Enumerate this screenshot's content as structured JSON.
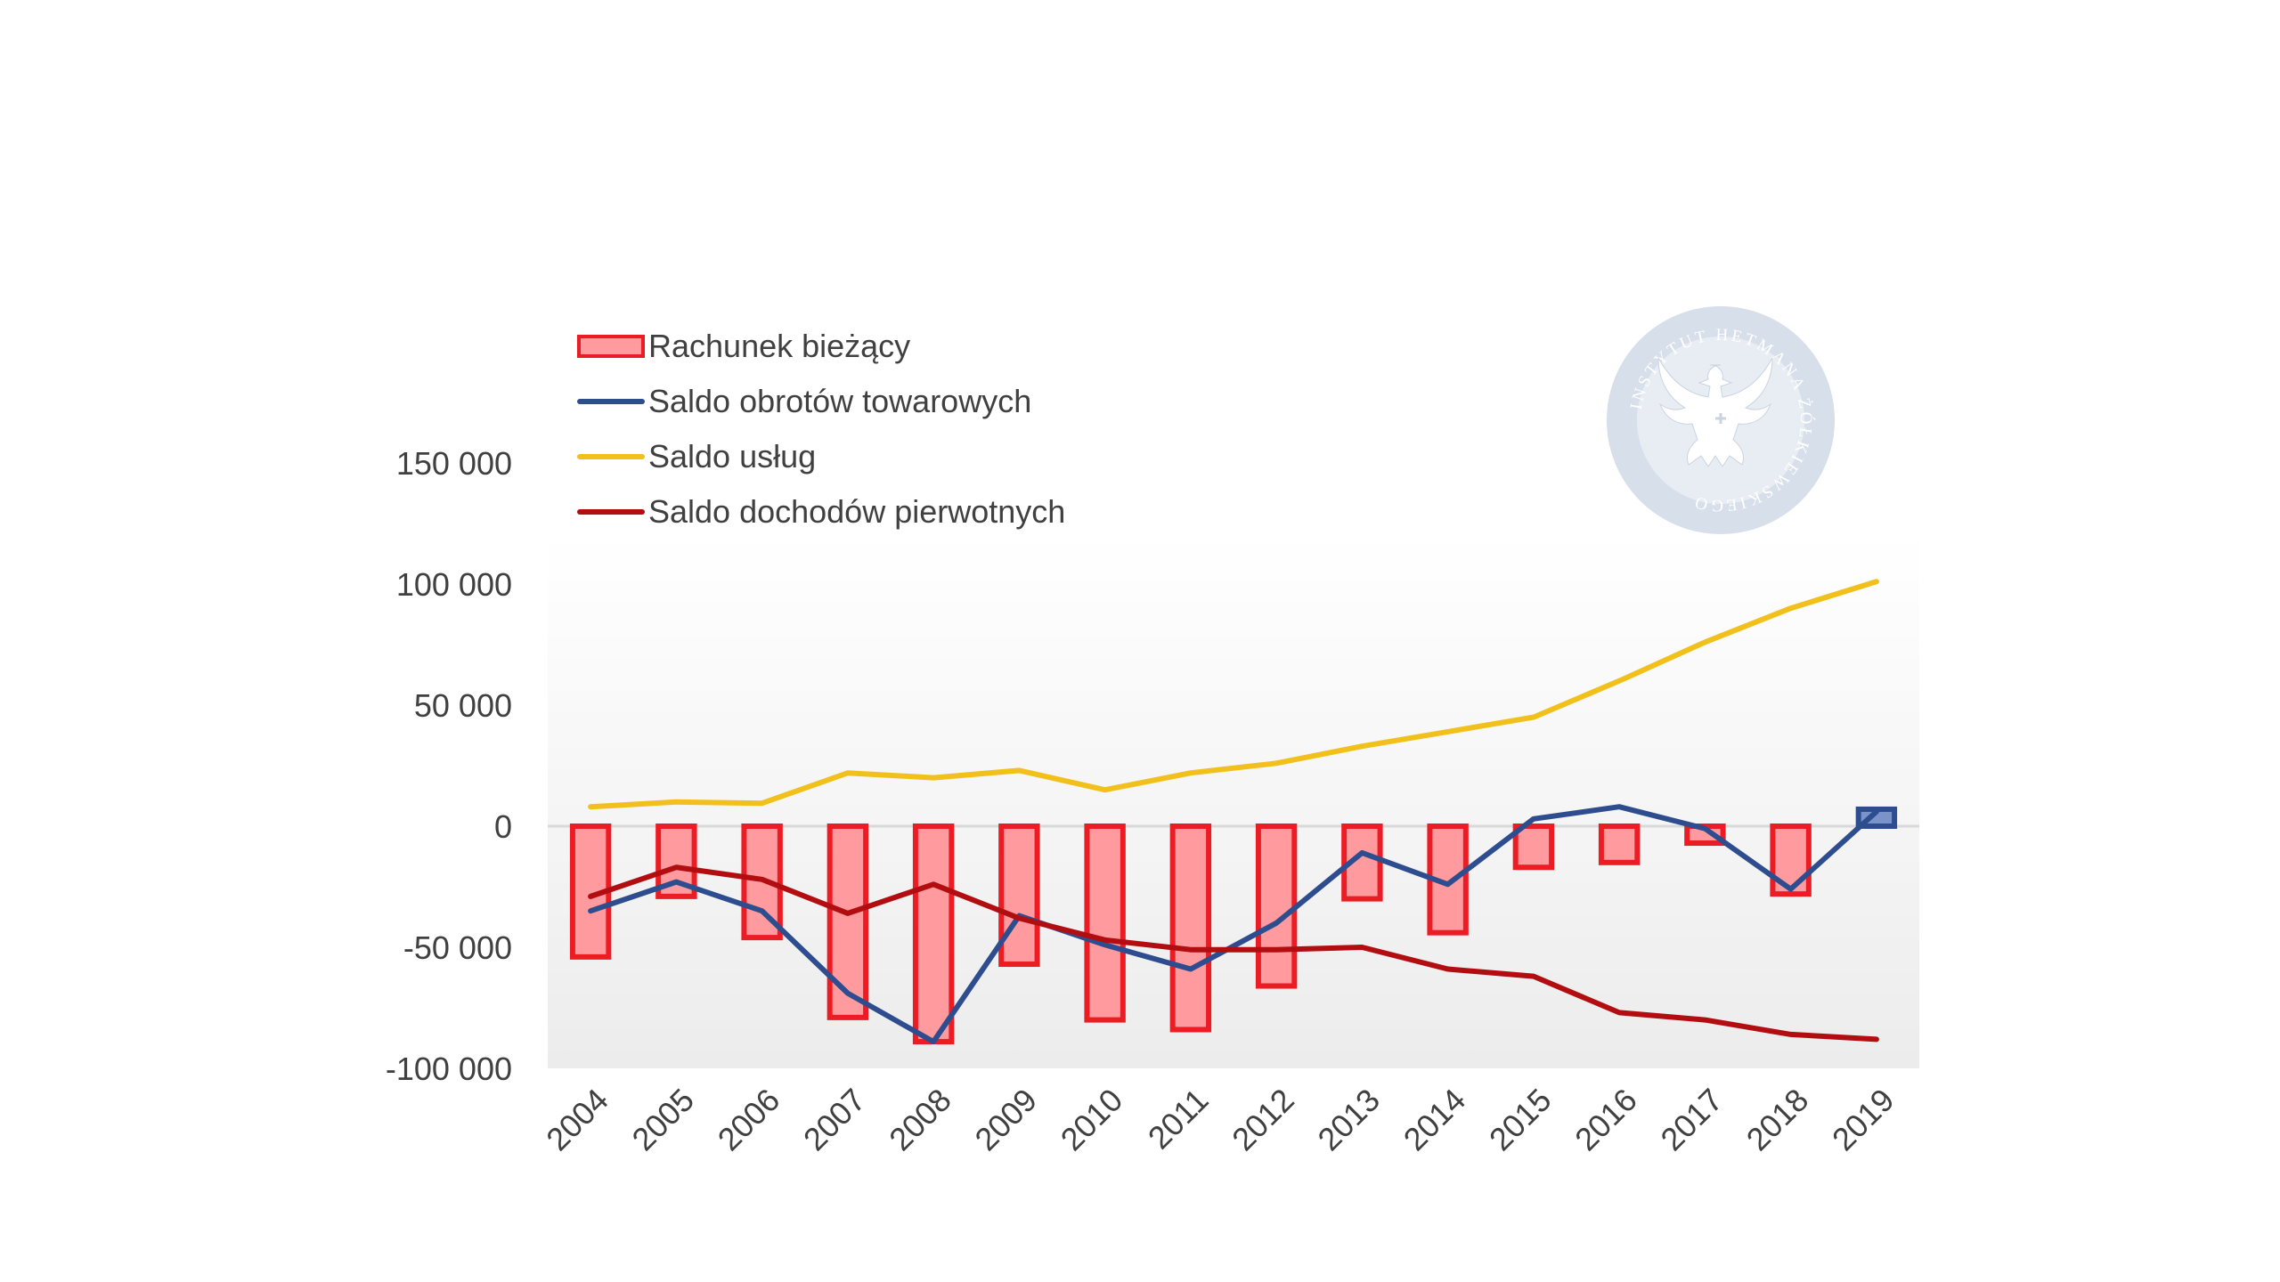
{
  "chart_data": {
    "type": "bar",
    "categories": [
      "2004",
      "2005",
      "2006",
      "2007",
      "2008",
      "2009",
      "2010",
      "2011",
      "2012",
      "2013",
      "2014",
      "2015",
      "2016",
      "2017",
      "2018",
      "2019"
    ],
    "ylim": [
      -100000,
      150000
    ],
    "yticks": [
      150000,
      100000,
      50000,
      0,
      -50000,
      -100000
    ],
    "ytick_labels": [
      "150 000",
      "100 000",
      "50 000",
      "0",
      "-50 000",
      "-100 000"
    ],
    "grid": false,
    "legend_position": "top-left",
    "series": [
      {
        "name": "Rachunek bieżący",
        "type": "bar",
        "color": "#ec1c24",
        "fill": "#ff9a9e",
        "values": [
          -54000,
          -29000,
          -46000,
          -79000,
          -89000,
          -57000,
          -80000,
          -84000,
          -66000,
          -30000,
          -44000,
          -17000,
          -15000,
          -7000,
          -28000,
          7000
        ]
      },
      {
        "name": "Saldo obrotów towarowych",
        "type": "line",
        "color": "#2e4d8f",
        "values": [
          -35000,
          -23000,
          -35000,
          -69000,
          -89000,
          -37000,
          -49000,
          -59000,
          -40000,
          -11000,
          -24000,
          3000,
          8000,
          -1000,
          -26000,
          6000
        ]
      },
      {
        "name": "Saldo usług",
        "type": "line",
        "color": "#f2c01b",
        "values": [
          8000,
          10000,
          9500,
          22000,
          20000,
          23000,
          15000,
          22000,
          26000,
          33000,
          39000,
          45000,
          60000,
          76000,
          90000,
          101000
        ]
      },
      {
        "name": "Saldo dochodów pierwotnych",
        "type": "line",
        "color": "#b20e12",
        "values": [
          -29000,
          -17000,
          -22000,
          -36000,
          -24000,
          -38000,
          -47000,
          -51000,
          -51000,
          -50000,
          -59000,
          -62000,
          -77000,
          -80000,
          -86000,
          -88000
        ]
      }
    ],
    "watermark_text": "INSTYTUT HETMANA ŻÓŁKIEWSKIEGO"
  }
}
